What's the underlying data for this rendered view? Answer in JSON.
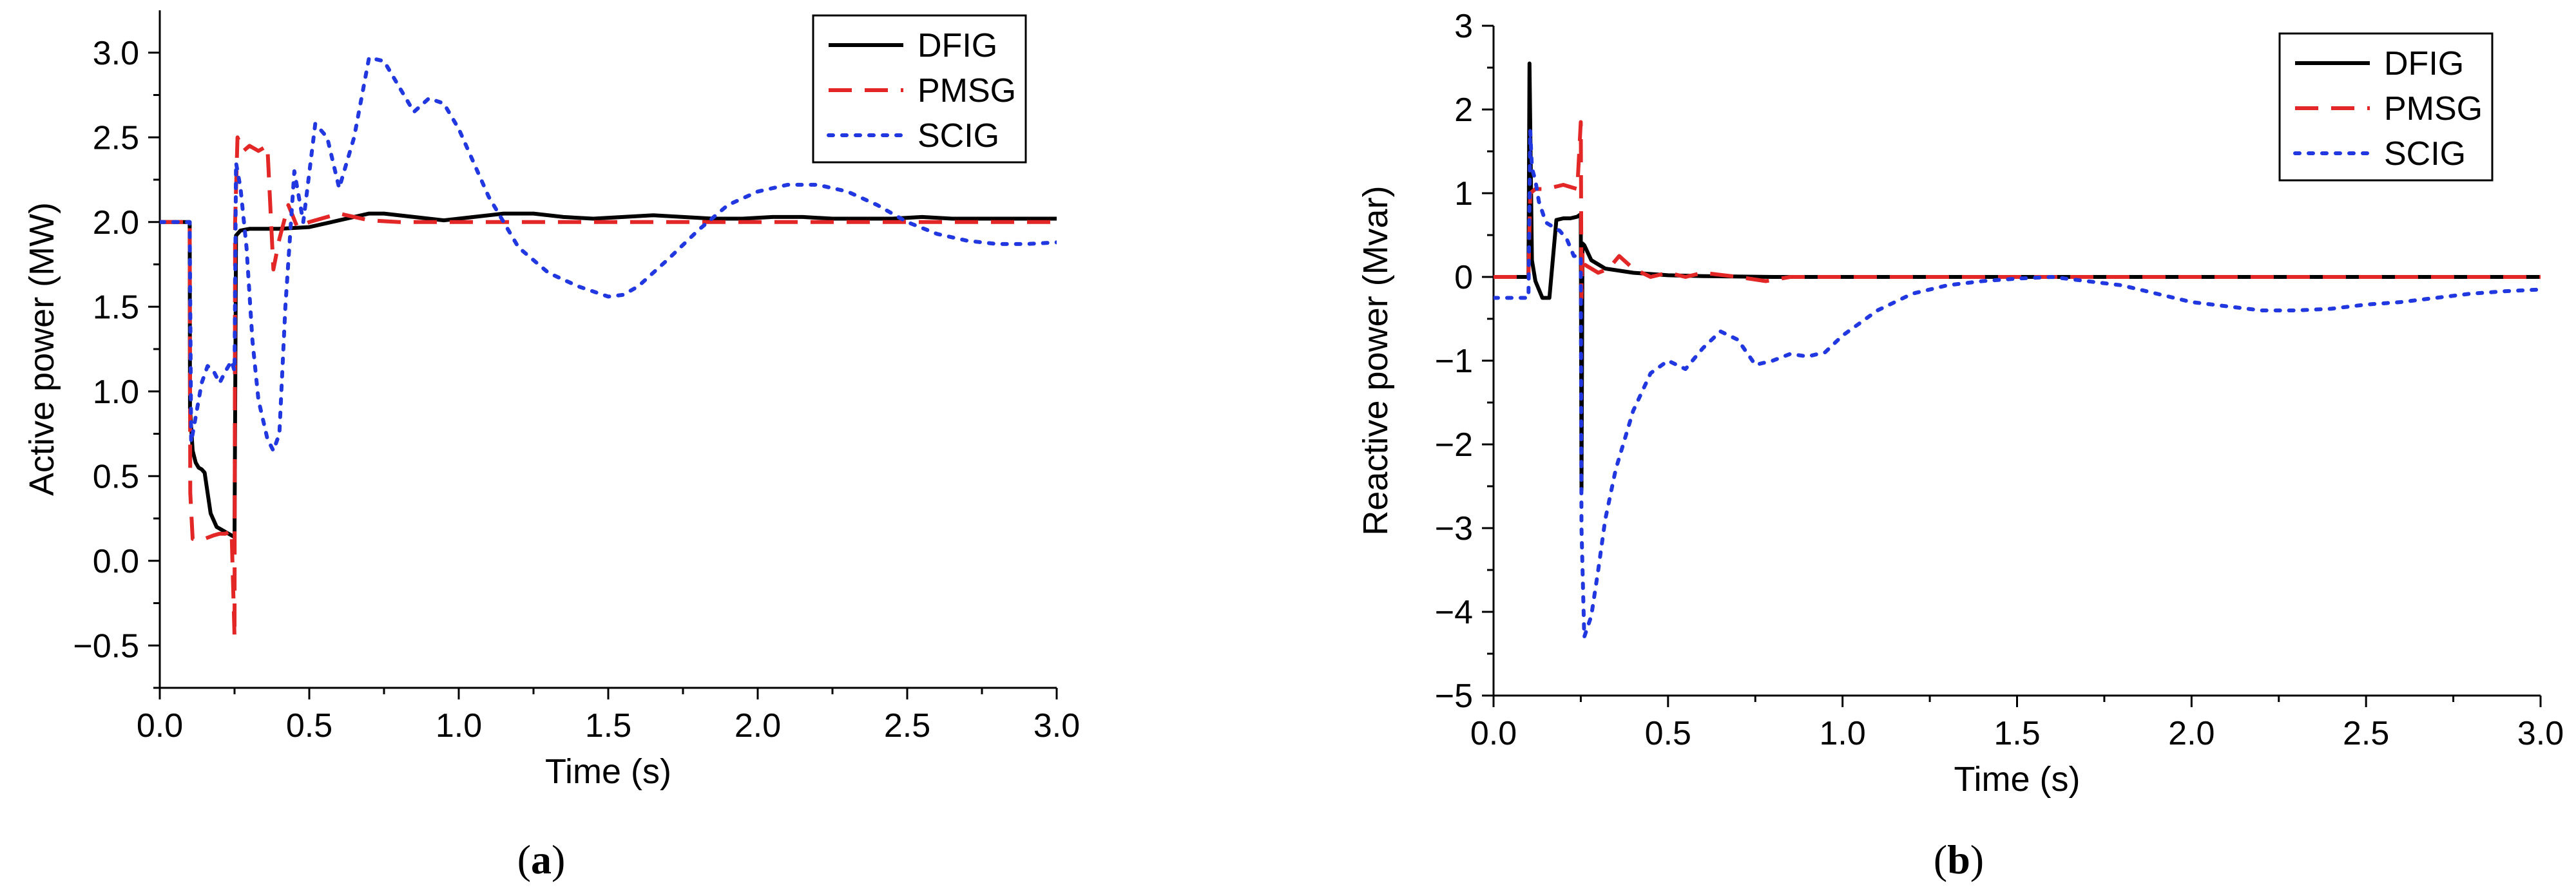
{
  "chart_data": [
    {
      "type": "line",
      "panel_label": "a",
      "xlabel": "Time (s)",
      "ylabel": "Active power (MW)",
      "xlim": [
        0,
        3.0
      ],
      "ylim": [
        -0.75,
        3.25
      ],
      "xticks": [
        0.0,
        0.5,
        1.0,
        1.5,
        2.0,
        2.5,
        3.0
      ],
      "xtick_labels": [
        "0.0",
        "0.5",
        "1.0",
        "1.5",
        "2.0",
        "2.5",
        "3.0"
      ],
      "yticks": [
        -0.5,
        0.0,
        0.5,
        1.0,
        1.5,
        2.0,
        2.5,
        3.0
      ],
      "ytick_labels": [
        "−0.5",
        "0.0",
        "0.5",
        "1.0",
        "1.5",
        "2.0",
        "2.5",
        "3.0"
      ],
      "legend_position": "top-right",
      "series": [
        {
          "name": "DFIG",
          "color": "#000000",
          "dash": "solid",
          "x": [
            0,
            0.1,
            0.101,
            0.11,
            0.12,
            0.13,
            0.14,
            0.15,
            0.17,
            0.19,
            0.21,
            0.23,
            0.25,
            0.255,
            0.27,
            0.3,
            0.4,
            0.5,
            0.6,
            0.7,
            0.75,
            0.85,
            0.95,
            1.05,
            1.15,
            1.25,
            1.35,
            1.45,
            1.55,
            1.65,
            1.75,
            1.85,
            1.95,
            2.05,
            2.15,
            2.25,
            2.35,
            2.45,
            2.55,
            2.65,
            2.75,
            2.85,
            2.95,
            3.0
          ],
          "y": [
            2.0,
            2.0,
            0.9,
            0.65,
            0.58,
            0.55,
            0.54,
            0.52,
            0.28,
            0.2,
            0.18,
            0.16,
            0.14,
            1.92,
            1.95,
            1.96,
            1.96,
            1.97,
            2.01,
            2.05,
            2.05,
            2.03,
            2.01,
            2.03,
            2.05,
            2.05,
            2.03,
            2.02,
            2.03,
            2.04,
            2.03,
            2.02,
            2.02,
            2.03,
            2.03,
            2.02,
            2.02,
            2.02,
            2.03,
            2.02,
            2.02,
            2.02,
            2.02,
            2.02
          ]
        },
        {
          "name": "PMSG",
          "color": "#e32626",
          "dash": "dashed",
          "x": [
            0,
            0.1,
            0.102,
            0.11,
            0.13,
            0.15,
            0.18,
            0.2,
            0.22,
            0.24,
            0.25,
            0.252,
            0.26,
            0.28,
            0.3,
            0.33,
            0.36,
            0.38,
            0.4,
            0.43,
            0.46,
            0.5,
            0.6,
            0.7,
            0.8,
            1.0,
            1.2,
            1.5,
            2.0,
            2.5,
            3.0
          ],
          "y": [
            2.0,
            2.0,
            0.4,
            0.13,
            0.12,
            0.13,
            0.15,
            0.16,
            0.16,
            0.18,
            -0.45,
            2.0,
            2.5,
            2.42,
            2.45,
            2.42,
            2.45,
            1.72,
            1.9,
            2.1,
            1.97,
            2.0,
            2.05,
            2.01,
            2.0,
            2.0,
            2.0,
            2.0,
            2.0,
            2.0,
            2.0
          ]
        },
        {
          "name": "SCIG",
          "color": "#2138e0",
          "dash": "dotted",
          "x": [
            0,
            0.1,
            0.105,
            0.12,
            0.14,
            0.16,
            0.18,
            0.2,
            0.22,
            0.24,
            0.25,
            0.255,
            0.27,
            0.29,
            0.31,
            0.33,
            0.36,
            0.38,
            0.4,
            0.42,
            0.45,
            0.48,
            0.52,
            0.56,
            0.6,
            0.65,
            0.7,
            0.75,
            0.8,
            0.85,
            0.9,
            0.95,
            1.0,
            1.05,
            1.1,
            1.2,
            1.3,
            1.4,
            1.5,
            1.55,
            1.6,
            1.7,
            1.8,
            1.9,
            2.0,
            2.1,
            2.2,
            2.3,
            2.4,
            2.5,
            2.6,
            2.7,
            2.8,
            2.9,
            3.0
          ],
          "y": [
            2.0,
            2.0,
            0.7,
            0.85,
            1.05,
            1.15,
            1.12,
            1.05,
            1.12,
            1.18,
            1.12,
            2.35,
            2.2,
            1.85,
            1.3,
            0.95,
            0.72,
            0.65,
            0.75,
            1.5,
            2.3,
            2.0,
            2.58,
            2.5,
            2.2,
            2.5,
            2.97,
            2.95,
            2.8,
            2.65,
            2.73,
            2.7,
            2.55,
            2.35,
            2.15,
            1.85,
            1.7,
            1.62,
            1.56,
            1.57,
            1.62,
            1.78,
            1.95,
            2.1,
            2.18,
            2.22,
            2.22,
            2.18,
            2.1,
            2.0,
            1.93,
            1.89,
            1.87,
            1.87,
            1.88
          ]
        }
      ]
    },
    {
      "type": "line",
      "panel_label": "b",
      "xlabel": "Time (s)",
      "ylabel": "Reactive power (Mvar)",
      "xlim": [
        0,
        3.0
      ],
      "ylim": [
        -5,
        3
      ],
      "xticks": [
        0.0,
        0.5,
        1.0,
        1.5,
        2.0,
        2.5,
        3.0
      ],
      "xtick_labels": [
        "0.0",
        "0.5",
        "1.0",
        "1.5",
        "2.0",
        "2.5",
        "3.0"
      ],
      "yticks": [
        -5,
        -4,
        -3,
        -2,
        -1,
        0,
        1,
        2,
        3
      ],
      "ytick_labels": [
        "−5",
        "−4",
        "−3",
        "−2",
        "−1",
        "0",
        "1",
        "2",
        "3"
      ],
      "legend_position": "top-right",
      "series": [
        {
          "name": "DFIG",
          "color": "#000000",
          "dash": "solid",
          "x": [
            0,
            0.1,
            0.103,
            0.11,
            0.12,
            0.14,
            0.16,
            0.18,
            0.2,
            0.22,
            0.24,
            0.25,
            0.252,
            0.255,
            0.26,
            0.28,
            0.32,
            0.4,
            0.5,
            0.6,
            0.8,
            1.0,
            1.5,
            2.0,
            2.5,
            3.0
          ],
          "y": [
            0,
            0,
            2.55,
            0.2,
            -0.05,
            -0.25,
            -0.25,
            0.68,
            0.7,
            0.7,
            0.72,
            0.75,
            -2.55,
            0.4,
            0.38,
            0.2,
            0.1,
            0.05,
            0.02,
            0.01,
            0,
            0,
            0,
            0,
            0,
            0
          ]
        },
        {
          "name": "PMSG",
          "color": "#e32626",
          "dash": "dashed",
          "x": [
            0,
            0.1,
            0.105,
            0.12,
            0.15,
            0.2,
            0.24,
            0.25,
            0.252,
            0.255,
            0.26,
            0.3,
            0.33,
            0.36,
            0.4,
            0.45,
            0.5,
            0.55,
            0.6,
            0.7,
            0.78,
            0.85,
            1.0,
            1.5,
            2.0,
            2.5,
            3.0
          ],
          "y": [
            0,
            0,
            1.0,
            1.05,
            1.05,
            1.1,
            1.05,
            1.85,
            -0.25,
            0.3,
            0.15,
            0.05,
            0.1,
            0.25,
            0.1,
            0.0,
            0.05,
            0.0,
            0.05,
            0.0,
            -0.05,
            0,
            0,
            0,
            0,
            0,
            0
          ]
        },
        {
          "name": "SCIG",
          "color": "#2138e0",
          "dash": "dotted",
          "x": [
            0,
            0.1,
            0.102,
            0.105,
            0.11,
            0.12,
            0.13,
            0.15,
            0.17,
            0.19,
            0.21,
            0.23,
            0.25,
            0.252,
            0.26,
            0.28,
            0.3,
            0.32,
            0.35,
            0.4,
            0.45,
            0.5,
            0.55,
            0.6,
            0.65,
            0.7,
            0.75,
            0.8,
            0.85,
            0.9,
            0.95,
            1.0,
            1.05,
            1.1,
            1.2,
            1.3,
            1.4,
            1.5,
            1.6,
            1.7,
            1.8,
            1.9,
            2.0,
            2.1,
            2.2,
            2.3,
            2.4,
            2.5,
            2.6,
            2.7,
            2.8,
            2.9,
            3.0
          ],
          "y": [
            -0.25,
            -0.25,
            0.5,
            1.75,
            1.3,
            1.15,
            0.9,
            0.65,
            0.6,
            0.55,
            0.45,
            0.25,
            0.25,
            -3.0,
            -4.3,
            -4.05,
            -3.5,
            -2.9,
            -2.3,
            -1.6,
            -1.15,
            -1.0,
            -1.1,
            -0.85,
            -0.65,
            -0.75,
            -1.05,
            -1.0,
            -0.92,
            -0.95,
            -0.9,
            -0.7,
            -0.55,
            -0.4,
            -0.2,
            -0.1,
            -0.05,
            -0.02,
            0.0,
            -0.05,
            -0.1,
            -0.2,
            -0.3,
            -0.35,
            -0.4,
            -0.4,
            -0.38,
            -0.33,
            -0.3,
            -0.25,
            -0.2,
            -0.17,
            -0.15
          ]
        }
      ]
    }
  ]
}
